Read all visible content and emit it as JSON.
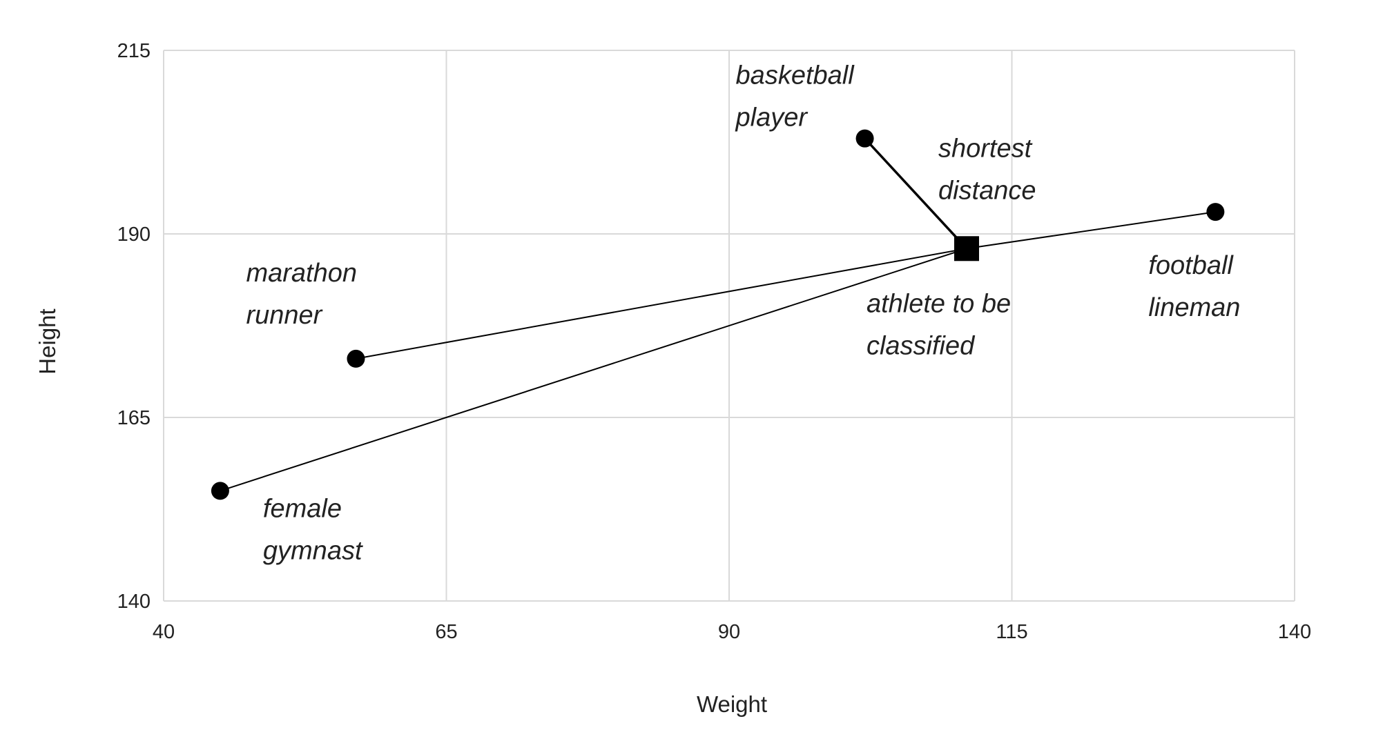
{
  "chart_data": {
    "type": "scatter",
    "xlabel": "Weight",
    "ylabel": "Height",
    "xlim": [
      40,
      140
    ],
    "ylim": [
      140,
      215
    ],
    "xticks": [
      40,
      65,
      90,
      115,
      140
    ],
    "yticks": [
      140,
      165,
      190,
      215
    ],
    "grid": true,
    "points": [
      {
        "label": [
          "basketball",
          "player"
        ],
        "x": 102,
        "y": 203
      },
      {
        "label": [
          "football",
          "lineman"
        ],
        "x": 133,
        "y": 193
      },
      {
        "label": [
          "marathon",
          "runner"
        ],
        "x": 57,
        "y": 173
      },
      {
        "label": [
          "female",
          "gymnast"
        ],
        "x": 45,
        "y": 155
      }
    ],
    "target": {
      "label": [
        "athlete to be",
        "classified"
      ],
      "x": 111,
      "y": 188
    },
    "annotation": [
      "shortest",
      "distance"
    ]
  }
}
